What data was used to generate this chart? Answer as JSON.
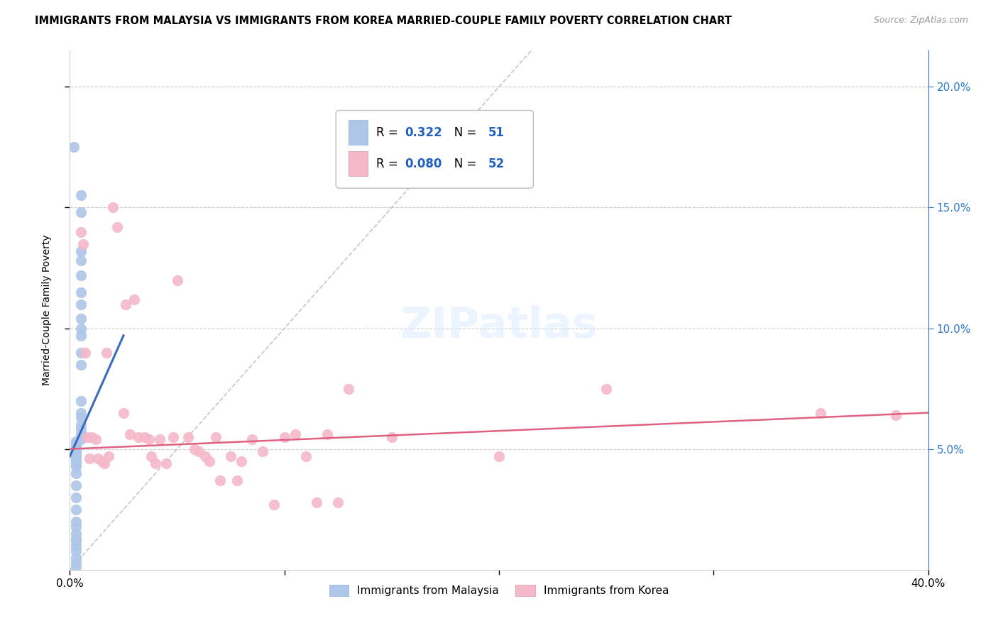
{
  "title": "IMMIGRANTS FROM MALAYSIA VS IMMIGRANTS FROM KOREA MARRIED-COUPLE FAMILY POVERTY CORRELATION CHART",
  "source": "Source: ZipAtlas.com",
  "ylabel": "Married-Couple Family Poverty",
  "xlim": [
    0.0,
    0.4
  ],
  "ylim": [
    0.0,
    0.215
  ],
  "xticks": [
    0.0,
    0.1,
    0.2,
    0.3,
    0.4
  ],
  "xticklabels": [
    "0.0%",
    "",
    "",
    "",
    "40.0%"
  ],
  "yticks_right": [
    0.05,
    0.1,
    0.15,
    0.2
  ],
  "yticklabels_right": [
    "5.0%",
    "10.0%",
    "15.0%",
    "20.0%"
  ],
  "grid_color": "#cccccc",
  "background_color": "#ffffff",
  "malaysia_color": "#aec6e8",
  "korea_color": "#f4b8c8",
  "malaysia_trendline_color": "#3a6abf",
  "korea_trendline_color": "#e06080",
  "diagonal_color": "#b0b8d0",
  "legend_R_color": "#2060c0",
  "malaysia_x": [
    0.002,
    0.005,
    0.005,
    0.005,
    0.005,
    0.005,
    0.005,
    0.005,
    0.005,
    0.005,
    0.005,
    0.005,
    0.005,
    0.005,
    0.005,
    0.005,
    0.005,
    0.005,
    0.005,
    0.005,
    0.003,
    0.003,
    0.003,
    0.003,
    0.003,
    0.003,
    0.003,
    0.003,
    0.003,
    0.003,
    0.003,
    0.003,
    0.003,
    0.003,
    0.003,
    0.003,
    0.003,
    0.003,
    0.003,
    0.003,
    0.003,
    0.003,
    0.003,
    0.003,
    0.003,
    0.003,
    0.003,
    0.003,
    0.003,
    0.003,
    0.003
  ],
  "malaysia_y": [
    0.175,
    0.155,
    0.148,
    0.132,
    0.128,
    0.122,
    0.115,
    0.11,
    0.104,
    0.1,
    0.097,
    0.09,
    0.085,
    0.07,
    0.065,
    0.063,
    0.06,
    0.058,
    0.056,
    0.054,
    0.053,
    0.052,
    0.052,
    0.051,
    0.05,
    0.05,
    0.05,
    0.049,
    0.048,
    0.047,
    0.047,
    0.046,
    0.046,
    0.045,
    0.044,
    0.044,
    0.043,
    0.04,
    0.035,
    0.03,
    0.025,
    0.02,
    0.018,
    0.015,
    0.013,
    0.012,
    0.01,
    0.008,
    0.005,
    0.003,
    0.001
  ],
  "korea_x": [
    0.005,
    0.006,
    0.007,
    0.008,
    0.009,
    0.01,
    0.012,
    0.013,
    0.015,
    0.016,
    0.017,
    0.018,
    0.02,
    0.022,
    0.025,
    0.026,
    0.028,
    0.03,
    0.032,
    0.035,
    0.037,
    0.038,
    0.04,
    0.042,
    0.045,
    0.048,
    0.05,
    0.055,
    0.058,
    0.06,
    0.063,
    0.065,
    0.068,
    0.07,
    0.075,
    0.078,
    0.08,
    0.085,
    0.09,
    0.095,
    0.1,
    0.105,
    0.11,
    0.115,
    0.12,
    0.125,
    0.13,
    0.15,
    0.2,
    0.25,
    0.35,
    0.385
  ],
  "korea_y": [
    0.14,
    0.135,
    0.09,
    0.055,
    0.046,
    0.055,
    0.054,
    0.046,
    0.045,
    0.044,
    0.09,
    0.047,
    0.15,
    0.142,
    0.065,
    0.11,
    0.056,
    0.112,
    0.055,
    0.055,
    0.054,
    0.047,
    0.044,
    0.054,
    0.044,
    0.055,
    0.12,
    0.055,
    0.05,
    0.049,
    0.047,
    0.045,
    0.055,
    0.037,
    0.047,
    0.037,
    0.045,
    0.054,
    0.049,
    0.027,
    0.055,
    0.056,
    0.047,
    0.028,
    0.056,
    0.028,
    0.075,
    0.055,
    0.047,
    0.075,
    0.065,
    0.064
  ]
}
